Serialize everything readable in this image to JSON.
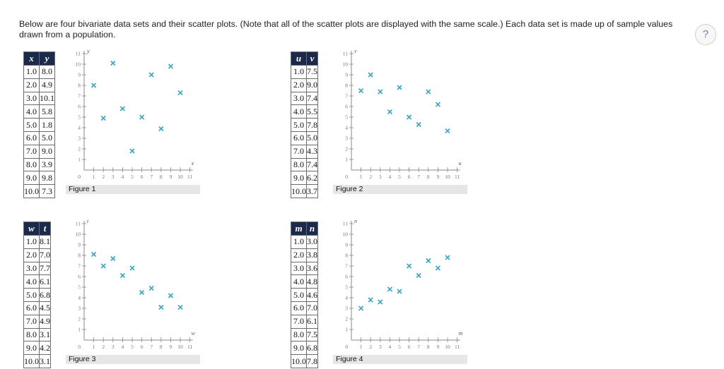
{
  "intro": "Below are four bivariate data sets and their scatter plots. (Note that all of the scatter plots are displayed with the same scale.) Each data set is made up of sample values drawn from a population.",
  "help_label": "?",
  "colors": {
    "marker": "#3aa6c4",
    "header_bg": "#1c2a4a",
    "caption_bg": "#e6e6e6"
  },
  "chart_data": [
    {
      "type": "scatter",
      "caption": "Figure 1",
      "xlabel": "x",
      "ylabel": "y",
      "xlim": [
        0,
        11
      ],
      "ylim": [
        0,
        11
      ],
      "grid": false,
      "x": [
        1.0,
        2.0,
        3.0,
        4.0,
        5.0,
        6.0,
        7.0,
        8.0,
        9.0,
        10.0
      ],
      "y": [
        8.0,
        4.9,
        10.1,
        5.8,
        1.8,
        5.0,
        9.0,
        3.9,
        9.8,
        7.3
      ],
      "x_text": [
        "1.0",
        "2.0",
        "3.0",
        "4.0",
        "5.0",
        "6.0",
        "7.0",
        "8.0",
        "9.0",
        "10.0"
      ],
      "y_text": [
        "8.0",
        "4.9",
        "10.1",
        "5.8",
        "1.8",
        "5.0",
        "9.0",
        "3.9",
        "9.8",
        "7.3"
      ]
    },
    {
      "type": "scatter",
      "caption": "Figure 2",
      "xlabel": "u",
      "ylabel": "v",
      "xlim": [
        0,
        11
      ],
      "ylim": [
        0,
        11
      ],
      "grid": false,
      "x": [
        1.0,
        2.0,
        3.0,
        4.0,
        5.0,
        6.0,
        7.0,
        8.0,
        9.0,
        10.0
      ],
      "y": [
        7.5,
        9.0,
        7.4,
        5.5,
        7.8,
        5.0,
        4.3,
        7.4,
        6.2,
        3.7
      ],
      "x_text": [
        "1.0",
        "2.0",
        "3.0",
        "4.0",
        "5.0",
        "6.0",
        "7.0",
        "8.0",
        "9.0",
        "10.0"
      ],
      "y_text": [
        "7.5",
        "9.0",
        "7.4",
        "5.5",
        "7.8",
        "5.0",
        "4.3",
        "7.4",
        "6.2",
        "3.7"
      ]
    },
    {
      "type": "scatter",
      "caption": "Figure 3",
      "xlabel": "w",
      "ylabel": "t",
      "xlim": [
        0,
        11
      ],
      "ylim": [
        0,
        11
      ],
      "grid": false,
      "x": [
        1.0,
        2.0,
        3.0,
        4.0,
        5.0,
        6.0,
        7.0,
        8.0,
        9.0,
        10.0
      ],
      "y": [
        8.1,
        7.0,
        7.7,
        6.1,
        6.8,
        4.5,
        4.9,
        3.1,
        4.2,
        3.1
      ],
      "x_text": [
        "1.0",
        "2.0",
        "3.0",
        "4.0",
        "5.0",
        "6.0",
        "7.0",
        "8.0",
        "9.0",
        "10.0"
      ],
      "y_text": [
        "8.1",
        "7.0",
        "7.7",
        "6.1",
        "6.8",
        "4.5",
        "4.9",
        "3.1",
        "4.2",
        "3.1"
      ]
    },
    {
      "type": "scatter",
      "caption": "Figure 4",
      "xlabel": "m",
      "ylabel": "n",
      "xlim": [
        0,
        11
      ],
      "ylim": [
        0,
        11
      ],
      "grid": false,
      "x": [
        1.0,
        2.0,
        3.0,
        4.0,
        5.0,
        6.0,
        7.0,
        8.0,
        9.0,
        10.0
      ],
      "y": [
        3.0,
        3.8,
        3.6,
        4.8,
        4.6,
        7.0,
        6.1,
        7.5,
        6.8,
        7.8
      ],
      "x_text": [
        "1.0",
        "2.0",
        "3.0",
        "4.0",
        "5.0",
        "6.0",
        "7.0",
        "8.0",
        "9.0",
        "10.0"
      ],
      "y_text": [
        "3.0",
        "3.8",
        "3.6",
        "4.8",
        "4.6",
        "7.0",
        "6.1",
        "7.5",
        "6.8",
        "7.8"
      ]
    }
  ]
}
